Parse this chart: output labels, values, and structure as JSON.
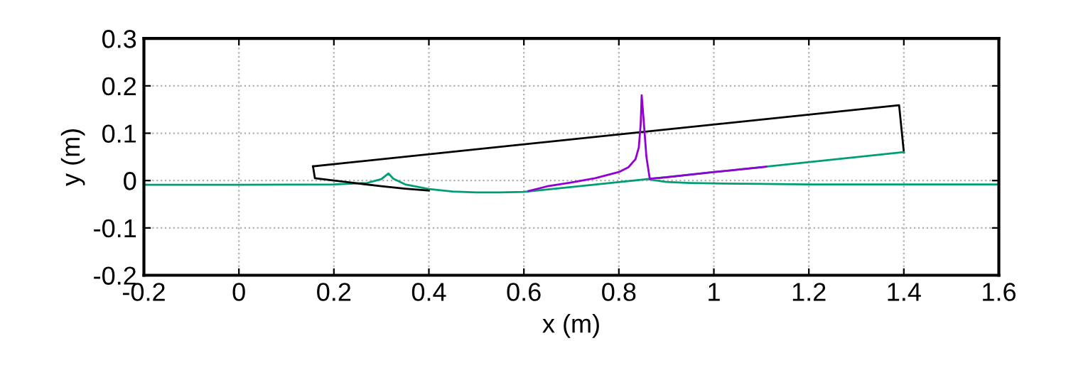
{
  "chart_data": {
    "type": "line",
    "xlabel": "x (m)",
    "ylabel": "y (m)",
    "xlim": [
      -0.2,
      1.6
    ],
    "ylim": [
      -0.2,
      0.3
    ],
    "xticks": [
      -0.2,
      0,
      0.2,
      0.4,
      0.6,
      0.8,
      1,
      1.2,
      1.4,
      1.6
    ],
    "yticks": [
      -0.2,
      -0.1,
      0,
      0.1,
      0.2,
      0.3
    ],
    "grid": true,
    "line_style": "solid",
    "marker": "none",
    "series": [
      {
        "color": "#000000",
        "x": [
          0.156,
          1.39,
          1.4
        ],
        "values": [
          0.03,
          0.159,
          0.06
        ]
      },
      {
        "color": "#000000",
        "x": [
          0.156,
          0.16,
          0.25,
          0.3,
          0.35,
          0.4
        ],
        "values": [
          0.03,
          0.005,
          -0.006,
          -0.012,
          -0.017,
          -0.021
        ]
      },
      {
        "color": "#9400d3",
        "x": [
          0.61,
          0.65,
          0.7,
          0.75,
          0.8,
          0.82,
          0.835,
          0.842,
          0.846,
          0.848,
          0.852,
          0.858,
          0.865,
          0.9,
          1.0,
          1.11
        ],
        "values": [
          -0.022,
          -0.012,
          -0.004,
          0.005,
          0.018,
          0.028,
          0.045,
          0.07,
          0.12,
          0.18,
          0.13,
          0.05,
          0.004,
          0.007,
          0.018,
          0.029
        ]
      },
      {
        "color": "#009e73",
        "x": [
          -0.2,
          0,
          0.2,
          0.27,
          0.3,
          0.315,
          0.325,
          0.35,
          0.4,
          0.45,
          0.5,
          0.55,
          0.6,
          0.86,
          1.4,
          null,
          0.86,
          0.9,
          0.95,
          1.0,
          1.1,
          1.2,
          1.4,
          1.6
        ],
        "values": [
          -0.009,
          -0.009,
          -0.008,
          -0.005,
          0.003,
          0.015,
          0.004,
          -0.008,
          -0.018,
          -0.023,
          -0.025,
          -0.025,
          -0.024,
          0.003,
          0.06,
          null,
          0.003,
          -0.003,
          -0.005,
          -0.006,
          -0.007,
          -0.008,
          -0.008,
          -0.008
        ]
      }
    ]
  }
}
